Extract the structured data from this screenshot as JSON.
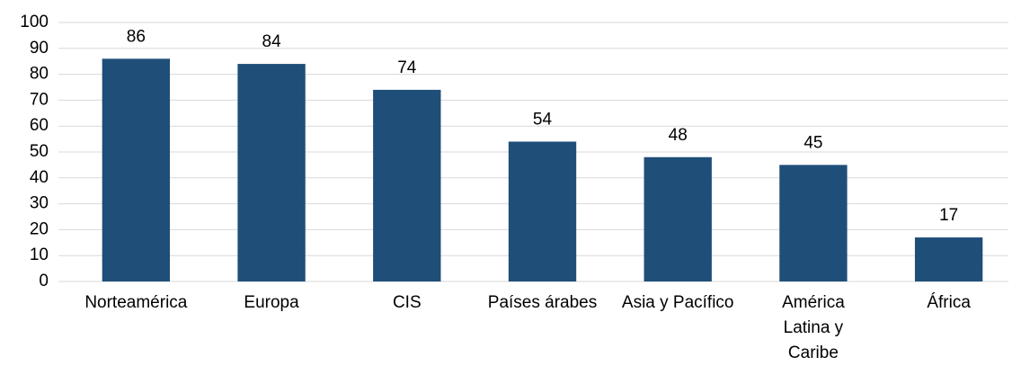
{
  "chart_data": {
    "type": "bar",
    "categories": [
      "Norteamérica",
      "Europa",
      "CIS",
      "Países árabes",
      "Asia y Pacífico",
      "América Latina y Caribe",
      "África"
    ],
    "values": [
      86,
      84,
      74,
      54,
      48,
      45,
      17
    ],
    "color": "#1f4e79",
    "ylim": [
      0,
      100
    ],
    "yticks": [
      0,
      10,
      20,
      30,
      40,
      50,
      60,
      70,
      80,
      90,
      100
    ],
    "grid": true
  }
}
